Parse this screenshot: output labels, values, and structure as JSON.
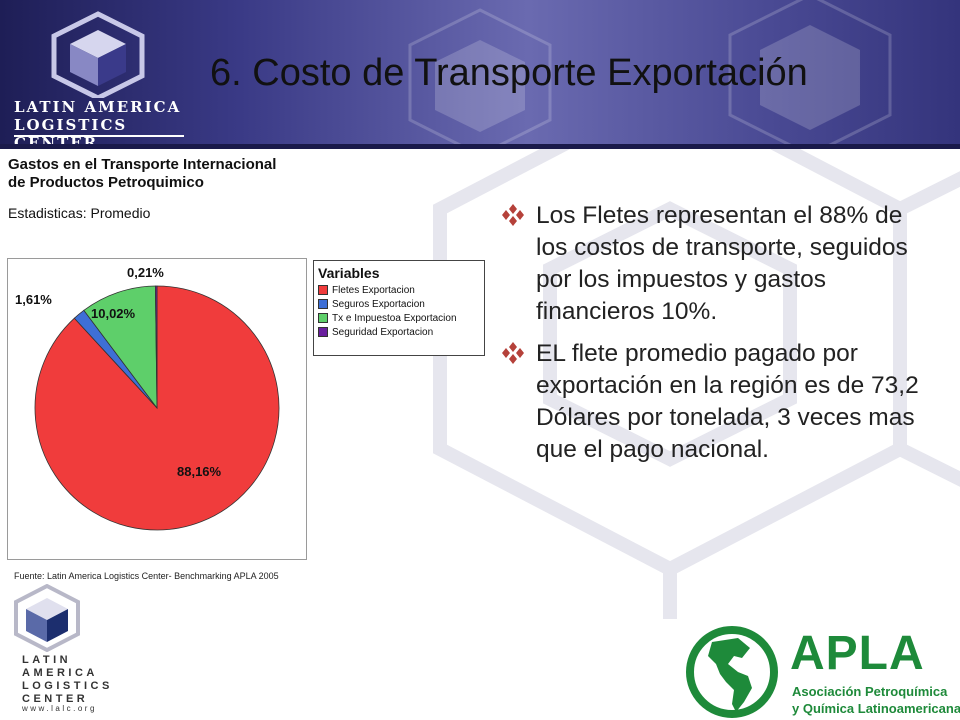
{
  "header": {
    "title": "6. Costo de Transporte Exportación",
    "brand_line1": "LATIN AMERICA",
    "brand_line2": "LOGISTICS CENTER"
  },
  "chart_data": {
    "type": "pie",
    "title": "Gastos en el Transporte Internacional de Productos Petroquimico",
    "title_line1": "Gastos en el Transporte Internacional",
    "title_line2": "de Productos Petroquimico",
    "subtitle": "Estadisticas: Promedio",
    "legend_title": "Variables",
    "legend_position": "right",
    "slices": [
      {
        "name": "Fletes Exportacion",
        "value": 88.16,
        "label": "88,16%",
        "color": "#f03c3c"
      },
      {
        "name": "Seguros Exportacion",
        "value": 1.61,
        "label": "1,61%",
        "color": "#3e6fd6"
      },
      {
        "name": "Tx e  Impuestoa Exportacion",
        "value": 10.02,
        "label": "10,02%",
        "color": "#5ecf6a"
      },
      {
        "name": "Seguridad Exportacion",
        "value": 0.21,
        "label": "0,21%",
        "color": "#6a1f9e"
      }
    ],
    "source": "Fuente: Latin America Logistics Center- Benchmarking APLA 2005"
  },
  "bullets": [
    {
      "text": "Los Fletes representan el 88% de los costos de transporte, seguidos por los impuestos y gastos financieros 10%."
    },
    {
      "text": "EL flete promedio pagado por exportación en la región es de 73,2 Dólares por tonelada, 3 veces mas que el pago nacional."
    }
  ],
  "footer_logo": {
    "lines": [
      "LATIN",
      "AMERICA",
      "LOGISTICS",
      "CENTER"
    ],
    "url": "www.lalc.org"
  },
  "apla": {
    "name": "APLA",
    "line1": "Asociación Petroquímica",
    "line2": "y Química Latinoamericana"
  },
  "colors": {
    "header_dark": "#1e1e56",
    "bullet_mark": "#b5413a",
    "apla_green": "#1e8a3a"
  }
}
